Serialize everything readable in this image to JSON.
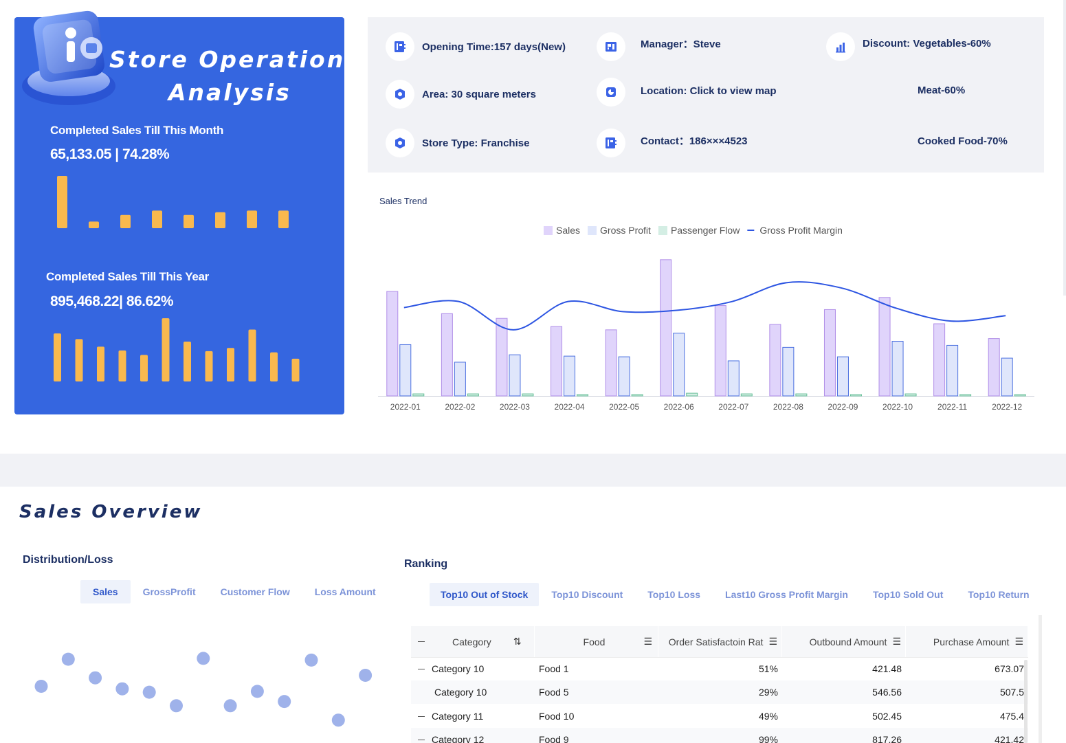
{
  "hero": {
    "title_line1": "Store Operation",
    "title_line2": "Analysis",
    "month_label": "Completed Sales Till This Month",
    "month_value": "65,133.05 | 74.28%",
    "year_label": "Completed Sales Till This Year",
    "year_value": "895,468.22| 86.62%",
    "month_bars": [
      0.95,
      0.12,
      0.24,
      0.32,
      0.24,
      0.29,
      0.32,
      0.32
    ],
    "year_bars": [
      0.76,
      0.67,
      0.55,
      0.49,
      0.42,
      1.0,
      0.63,
      0.48,
      0.53,
      0.82,
      0.46,
      0.36
    ],
    "bar_color": "#f9b94e"
  },
  "info": {
    "opening_time": "Opening Time:157 days(New)",
    "area": "Area: 30 square meters",
    "store_type": "Store Type: Franchise",
    "manager": "Manager：Steve",
    "location": "Location: Click to view map",
    "contact": "Contact：186×××4523",
    "discount": "Discount:  Vegetables-60%",
    "discount_meat": "Meat-60%",
    "discount_cooked": "Cooked Food-70%",
    "icons": [
      "contact-card-icon",
      "settings-badge-icon",
      "settings-badge-icon",
      "id-card-icon",
      "pie-chart-icon",
      "contact-card-icon",
      "bar-chart-icon"
    ]
  },
  "chart_data": {
    "type": "bar",
    "title": "Sales Trend",
    "categories": [
      "2022-01",
      "2022-02",
      "2022-03",
      "2022-04",
      "2022-05",
      "2022-06",
      "2022-07",
      "2022-08",
      "2022-09",
      "2022-10",
      "2022-11",
      "2022-12"
    ],
    "series": [
      {
        "name": "Sales",
        "kind": "bar",
        "color": "#e0d4fb",
        "stroke": "#b08ee8",
        "values": [
          155,
          122,
          115,
          103,
          98,
          202,
          134,
          106,
          128,
          146,
          107,
          85
        ]
      },
      {
        "name": "Gross Profit",
        "kind": "bar",
        "color": "#dfe6fb",
        "stroke": "#4a6fe0",
        "values": [
          76,
          50,
          61,
          59,
          58,
          93,
          52,
          72,
          58,
          81,
          75,
          56
        ]
      },
      {
        "name": "Passenger Flow",
        "kind": "bar",
        "color": "#d4eee4",
        "stroke": "#67bf98",
        "values": [
          3,
          3,
          3,
          2,
          2,
          4,
          3,
          3,
          2,
          3,
          2,
          2
        ]
      },
      {
        "name": "Gross Profit Margin",
        "kind": "line",
        "color": "#2d55e2",
        "values": [
          131,
          140,
          98,
          140,
          125,
          127,
          140,
          168,
          160,
          130,
          111,
          119
        ]
      }
    ],
    "ylim": [
      0,
      210
    ],
    "legend": "top-center",
    "grid": false
  },
  "overview": {
    "title": "Sales  Overview",
    "distribution_label": "Distribution/Loss",
    "ranking_label": "Ranking",
    "dist_tabs": [
      "Sales",
      "GrossProfit",
      "Customer Flow",
      "Loss Amount"
    ],
    "rank_tabs": [
      "Top10 Out of Stock",
      "Top10 Discount",
      "Top10 Loss",
      "Last10 Gross Profit Margin",
      "Top10 Sold Out",
      "Top10 Return"
    ],
    "scatter_points": [
      [
        1,
        0.5
      ],
      [
        2,
        0.82
      ],
      [
        3,
        0.6
      ],
      [
        4,
        0.47
      ],
      [
        5,
        0.43
      ],
      [
        6,
        0.27
      ],
      [
        7,
        0.83
      ],
      [
        8,
        0.27
      ],
      [
        9,
        0.44
      ],
      [
        10,
        0.32
      ],
      [
        11,
        0.81
      ],
      [
        12,
        0.1
      ],
      [
        13,
        0.63
      ]
    ],
    "scatter_color": "#9aaee9"
  },
  "table": {
    "headers": [
      "Category",
      "Food",
      "Order Satisfactoin Rat",
      "Outbound Amount",
      "Purchase Amount"
    ],
    "header_icons": [
      "sort-asc-icon",
      "sort-icon",
      "sort-icon",
      "sort-icon",
      "sort-icon"
    ],
    "rows": [
      {
        "category": "Category 10",
        "food": "Food 1",
        "rate": "51%",
        "outbound": "421.48",
        "purchase": "673.07",
        "group": true
      },
      {
        "category": "Category 10",
        "food": "Food 5",
        "rate": "29%",
        "outbound": "546.56",
        "purchase": "507.5",
        "group": false
      },
      {
        "category": "Category 11",
        "food": "Food 10",
        "rate": "49%",
        "outbound": "502.45",
        "purchase": "475.4",
        "group": true
      },
      {
        "category": "Category 12",
        "food": "Food 9",
        "rate": "99%",
        "outbound": "817.26",
        "purchase": "421.42",
        "group": true
      }
    ]
  }
}
